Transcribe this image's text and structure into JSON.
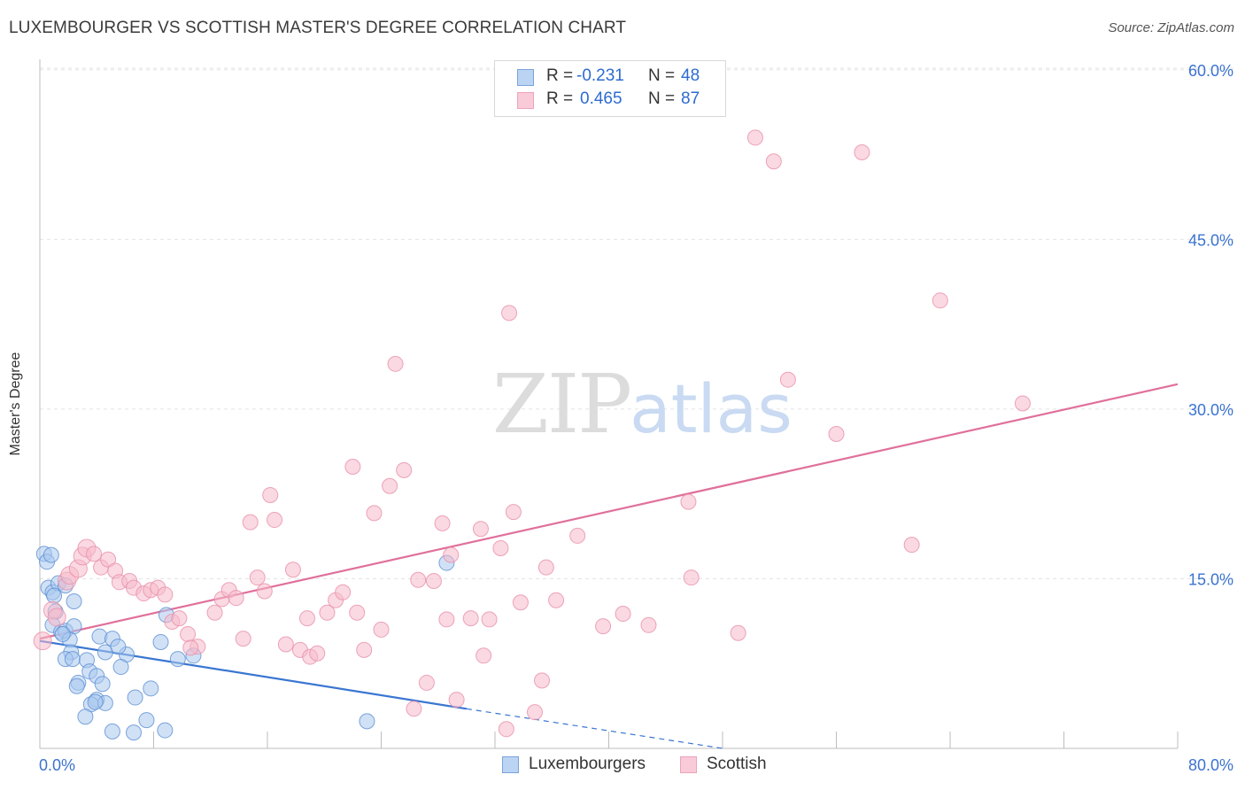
{
  "header": {
    "title": "LUXEMBOURGER VS SCOTTISH MASTER'S DEGREE CORRELATION CHART",
    "source": "Source: ZipAtlas.com"
  },
  "watermark": {
    "zip": "ZIP",
    "atlas": "atlas"
  },
  "legend_stats": [
    {
      "r_label": "R = ",
      "r_value": "-0.231",
      "n_label": "N = ",
      "n_value": "48"
    },
    {
      "r_label": "R = ",
      "r_value": "0.465",
      "n_label": "N = ",
      "n_value": "87"
    }
  ],
  "colors": {
    "lux_fill": "#a9c8ef",
    "lux_stroke": "#5d8fd2",
    "lux_line": "#3a76d1",
    "sco_fill": "#f6b9cb",
    "sco_stroke": "#e88fa9",
    "sco_line": "#e0709b",
    "axis_label": "#3b73d0",
    "grid": "#e3e3e3"
  },
  "chart_data": {
    "type": "scatter",
    "title": "LUXEMBOURGER VS SCOTTISH MASTER'S DEGREE CORRELATION CHART",
    "xlabel": "",
    "ylabel": "Master's Degree",
    "xlim": [
      0,
      80
    ],
    "ylim": [
      0,
      62
    ],
    "x_tick_labels": [
      {
        "value": 0,
        "label": "0.0%"
      },
      {
        "value": 80,
        "label": "80.0%"
      }
    ],
    "y_tick_labels": [
      {
        "value": 15,
        "label": "15.0%"
      },
      {
        "value": 30,
        "label": "30.0%"
      },
      {
        "value": 45,
        "label": "45.0%"
      },
      {
        "value": 60,
        "label": "60.0%"
      }
    ],
    "series": [
      {
        "name": "Luxembourgers",
        "r": -0.231,
        "n": 48,
        "trend": {
          "x0": 0,
          "y0": 9.5,
          "x1": 30,
          "y1": 3.5,
          "dashed_to_x": 48,
          "dashed_to_y": 0
        },
        "points": [
          [
            0.3,
            17.2
          ],
          [
            0.5,
            16.5
          ],
          [
            0.8,
            17.1
          ],
          [
            0.6,
            14.2
          ],
          [
            0.9,
            13.8
          ],
          [
            1.3,
            14.6
          ],
          [
            1.8,
            14.4
          ],
          [
            1.1,
            12.1
          ],
          [
            2.4,
            13.0
          ],
          [
            0.9,
            10.9
          ],
          [
            1.5,
            10.3
          ],
          [
            1.8,
            10.4
          ],
          [
            2.4,
            10.8
          ],
          [
            2.1,
            9.6
          ],
          [
            4.2,
            9.9
          ],
          [
            5.1,
            9.7
          ],
          [
            8.5,
            9.4
          ],
          [
            8.9,
            11.8
          ],
          [
            2.2,
            8.5
          ],
          [
            1.8,
            7.9
          ],
          [
            2.3,
            7.9
          ],
          [
            3.3,
            7.8
          ],
          [
            4.6,
            8.5
          ],
          [
            6.1,
            8.3
          ],
          [
            5.7,
            7.2
          ],
          [
            9.7,
            7.9
          ],
          [
            10.8,
            8.2
          ],
          [
            3.5,
            6.8
          ],
          [
            4.0,
            6.4
          ],
          [
            2.7,
            5.8
          ],
          [
            2.6,
            5.5
          ],
          [
            4.4,
            5.7
          ],
          [
            7.8,
            5.3
          ],
          [
            6.7,
            4.5
          ],
          [
            4.0,
            4.3
          ],
          [
            3.6,
            3.9
          ],
          [
            4.6,
            4.0
          ],
          [
            3.2,
            2.8
          ],
          [
            7.5,
            2.5
          ],
          [
            5.1,
            1.5
          ],
          [
            6.6,
            1.4
          ],
          [
            8.8,
            1.6
          ],
          [
            23.0,
            2.4
          ],
          [
            28.6,
            16.4
          ],
          [
            1.6,
            10.1
          ],
          [
            5.5,
            9.0
          ],
          [
            3.9,
            4.1
          ],
          [
            1.0,
            13.5
          ]
        ]
      },
      {
        "name": "Scottish",
        "r": 0.465,
        "n": 87,
        "trend": {
          "x0": 0,
          "y0": 9.7,
          "x1": 80,
          "y1": 32.2
        },
        "points": [
          [
            0.2,
            9.5
          ],
          [
            0.9,
            12.2
          ],
          [
            1.2,
            11.6
          ],
          [
            1.9,
            14.8
          ],
          [
            2.1,
            15.3
          ],
          [
            2.7,
            15.9
          ],
          [
            3.0,
            17.0
          ],
          [
            3.3,
            17.7
          ],
          [
            3.8,
            17.2
          ],
          [
            4.3,
            16.0
          ],
          [
            4.8,
            16.7
          ],
          [
            5.3,
            15.7
          ],
          [
            5.6,
            14.7
          ],
          [
            6.3,
            14.8
          ],
          [
            6.6,
            14.2
          ],
          [
            7.3,
            13.7
          ],
          [
            7.8,
            14.0
          ],
          [
            8.3,
            14.2
          ],
          [
            8.8,
            13.6
          ],
          [
            9.3,
            11.2
          ],
          [
            9.8,
            11.5
          ],
          [
            10.4,
            10.1
          ],
          [
            11.1,
            9.0
          ],
          [
            10.6,
            8.9
          ],
          [
            12.3,
            12.0
          ],
          [
            12.8,
            13.2
          ],
          [
            13.3,
            14.0
          ],
          [
            13.8,
            13.3
          ],
          [
            14.3,
            9.7
          ],
          [
            14.8,
            20.0
          ],
          [
            15.3,
            15.1
          ],
          [
            15.8,
            13.9
          ],
          [
            16.2,
            22.4
          ],
          [
            16.5,
            20.2
          ],
          [
            17.3,
            9.2
          ],
          [
            17.8,
            15.8
          ],
          [
            18.3,
            8.7
          ],
          [
            18.8,
            11.5
          ],
          [
            19.0,
            8.1
          ],
          [
            19.5,
            8.4
          ],
          [
            20.2,
            12.0
          ],
          [
            20.8,
            13.1
          ],
          [
            21.3,
            13.8
          ],
          [
            22.0,
            24.9
          ],
          [
            22.3,
            12.0
          ],
          [
            22.8,
            8.7
          ],
          [
            23.5,
            20.8
          ],
          [
            24.0,
            10.5
          ],
          [
            24.6,
            23.2
          ],
          [
            25.0,
            34.0
          ],
          [
            25.6,
            24.6
          ],
          [
            26.3,
            3.5
          ],
          [
            26.6,
            14.9
          ],
          [
            27.2,
            5.8
          ],
          [
            27.7,
            14.8
          ],
          [
            28.3,
            19.9
          ],
          [
            28.6,
            11.4
          ],
          [
            28.9,
            17.1
          ],
          [
            29.3,
            4.3
          ],
          [
            30.3,
            11.5
          ],
          [
            31.0,
            19.4
          ],
          [
            31.2,
            8.2
          ],
          [
            31.6,
            11.4
          ],
          [
            32.4,
            17.7
          ],
          [
            32.8,
            1.7
          ],
          [
            33.0,
            38.5
          ],
          [
            33.3,
            20.9
          ],
          [
            33.8,
            12.9
          ],
          [
            34.8,
            3.2
          ],
          [
            35.3,
            6.0
          ],
          [
            35.6,
            16.0
          ],
          [
            36.3,
            13.1
          ],
          [
            37.8,
            18.8
          ],
          [
            39.6,
            10.8
          ],
          [
            41.0,
            11.9
          ],
          [
            42.8,
            10.9
          ],
          [
            45.6,
            21.8
          ],
          [
            45.8,
            15.1
          ],
          [
            49.1,
            10.2
          ],
          [
            50.3,
            54.0
          ],
          [
            51.6,
            51.9
          ],
          [
            52.6,
            32.6
          ],
          [
            56.0,
            27.8
          ],
          [
            57.8,
            52.7
          ],
          [
            61.3,
            18.0
          ],
          [
            63.3,
            39.6
          ],
          [
            69.1,
            30.5
          ]
        ]
      }
    ]
  },
  "bottom_legend": {
    "lux_label": "Luxembourgers",
    "sco_label": "Scottish"
  }
}
